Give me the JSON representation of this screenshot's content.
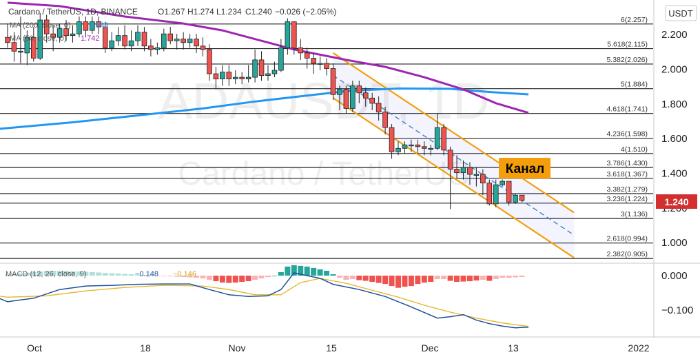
{
  "header": {
    "pair": "Cardano / TetherUS, 1D, BINANCE",
    "open": "O1.267",
    "high": "H1.274",
    "low": "L1.234",
    "close": "C1.240",
    "change": "−0.026 (−2.05%)",
    "ma200_label": "MA (200, close, 0)",
    "ma200_value": "1.849",
    "ma50_label": "MA (50, close, 0)",
    "ma50_value": "1.742"
  },
  "currency_button": "USDT",
  "last_price_label": "1.240",
  "watermark": {
    "ticker": "ADAUSDT, 1D",
    "name": "Cardano / TetherUS"
  },
  "channel_label": "Канал",
  "macd_header": {
    "label": "MACD (12, 26, close, 9)",
    "values": [
      "−0.148",
      "−0.146"
    ]
  },
  "colors": {
    "up": "#26a69a",
    "down": "#ef5350",
    "ma50": "#9c27b0",
    "ma200": "#2196f3",
    "channel": "#f59e0b",
    "macd_line": "#1e4f9c",
    "signal_line": "#e6b422",
    "last_price_bg": "#d32f2f"
  },
  "chart_data": {
    "type": "candlestick",
    "symbol": "ADAUSDT",
    "timeframe": "1D",
    "price_axis_ticks": [
      "2.200",
      "2.000",
      "1.800",
      "1.600",
      "1.400",
      "1.200",
      "1.000"
    ],
    "time_axis_ticks": [
      "Oct",
      "18",
      "Nov",
      "15",
      "Dec",
      "13",
      "2022"
    ],
    "price_range": [
      0.86,
      2.34
    ],
    "fib_levels": [
      {
        "label": "6(2.257)",
        "value": 2.257
      },
      {
        "label": "5.618(2.115)",
        "value": 2.115
      },
      {
        "label": "5.382(2.026)",
        "value": 2.026
      },
      {
        "label": "5(1.884)",
        "value": 1.884
      },
      {
        "label": "4.618(1.741)",
        "value": 1.741
      },
      {
        "label": "4.236(1.598)",
        "value": 1.598
      },
      {
        "label": "4(1.510)",
        "value": 1.51
      },
      {
        "label": "3.786(1.430)",
        "value": 1.43
      },
      {
        "label": "3.618(1.367)",
        "value": 1.367
      },
      {
        "label": "3.382(1.279)",
        "value": 1.279
      },
      {
        "label": "3.236(1.224)",
        "value": 1.224
      },
      {
        "label": "3(1.136)",
        "value": 1.136
      },
      {
        "label": "2.618(0.994)",
        "value": 0.994
      },
      {
        "label": "2.382(0.905)",
        "value": 0.905
      }
    ],
    "candles": [
      [
        2.18,
        2.15,
        2.26,
        2.12
      ],
      [
        2.15,
        2.1,
        2.21,
        2.04
      ],
      [
        2.1,
        2.1,
        2.3,
        2.03
      ],
      [
        2.09,
        2.18,
        2.22,
        2.02
      ],
      [
        2.18,
        2.06,
        2.24,
        2.04
      ],
      [
        2.06,
        2.28,
        2.32,
        2.05
      ],
      [
        2.28,
        2.2,
        2.31,
        2.15
      ],
      [
        2.2,
        2.18,
        2.25,
        2.1
      ],
      [
        2.18,
        2.23,
        2.26,
        2.15
      ],
      [
        2.23,
        2.19,
        2.28,
        2.16
      ],
      [
        2.19,
        2.2,
        2.25,
        2.15
      ],
      [
        2.2,
        2.27,
        2.3,
        2.18
      ],
      [
        2.27,
        2.22,
        2.3,
        2.18
      ],
      [
        2.22,
        2.27,
        2.3,
        2.2
      ],
      [
        2.27,
        2.24,
        2.3,
        2.2
      ],
      [
        2.24,
        2.12,
        2.27,
        2.09
      ],
      [
        2.12,
        2.16,
        2.21,
        2.1
      ],
      [
        2.16,
        2.19,
        2.24,
        2.13
      ],
      [
        2.19,
        2.13,
        2.25,
        2.11
      ],
      [
        2.13,
        2.16,
        2.22,
        2.1
      ],
      [
        2.16,
        2.21,
        2.25,
        2.13
      ],
      [
        2.21,
        2.13,
        2.24,
        2.1
      ],
      [
        2.13,
        2.11,
        2.17,
        2.07
      ],
      [
        2.11,
        2.12,
        2.15,
        2.08
      ],
      [
        2.12,
        2.2,
        2.23,
        2.1
      ],
      [
        2.2,
        2.16,
        2.24,
        2.14
      ],
      [
        2.16,
        2.17,
        2.2,
        2.11
      ],
      [
        2.17,
        2.15,
        2.21,
        2.11
      ],
      [
        2.15,
        2.17,
        2.2,
        2.12
      ],
      [
        2.17,
        2.13,
        2.2,
        2.09
      ],
      [
        2.13,
        2.11,
        2.18,
        2.07
      ],
      [
        2.11,
        1.97,
        2.14,
        1.93
      ],
      [
        1.97,
        1.94,
        2.01,
        1.88
      ],
      [
        1.94,
        1.98,
        2.02,
        1.9
      ],
      [
        1.98,
        1.94,
        2.02,
        1.9
      ],
      [
        1.94,
        1.95,
        1.99,
        1.91
      ],
      [
        1.95,
        1.94,
        1.98,
        1.91
      ],
      [
        1.94,
        1.95,
        2.02,
        1.92
      ],
      [
        1.95,
        2.05,
        2.11,
        1.92
      ],
      [
        2.05,
        1.96,
        2.1,
        1.93
      ],
      [
        1.96,
        1.97,
        2.02,
        1.93
      ],
      [
        1.97,
        1.99,
        2.04,
        1.95
      ],
      [
        1.99,
        2.12,
        2.17,
        1.98
      ],
      [
        2.12,
        2.27,
        2.29,
        2.08
      ],
      [
        2.27,
        2.12,
        2.26,
        2.08
      ],
      [
        2.12,
        2.09,
        2.17,
        2.05
      ],
      [
        2.09,
        2.06,
        2.12,
        2.0
      ],
      [
        2.06,
        2.03,
        2.09,
        1.97
      ],
      [
        2.03,
        2.03,
        2.07,
        1.99
      ],
      [
        2.03,
        2.0,
        2.06,
        1.96
      ],
      [
        2.0,
        1.85,
        2.03,
        1.82
      ],
      [
        1.85,
        1.88,
        1.9,
        1.76
      ],
      [
        1.88,
        1.77,
        1.9,
        1.74
      ],
      [
        1.77,
        1.9,
        1.93,
        1.75
      ],
      [
        1.9,
        1.86,
        1.93,
        1.8
      ],
      [
        1.86,
        1.83,
        1.89,
        1.78
      ],
      [
        1.83,
        1.8,
        1.86,
        1.76
      ],
      [
        1.8,
        1.75,
        1.84,
        1.7
      ],
      [
        1.75,
        1.66,
        1.78,
        1.62
      ],
      [
        1.66,
        1.52,
        1.68,
        1.48
      ],
      [
        1.52,
        1.54,
        1.58,
        1.5
      ],
      [
        1.54,
        1.56,
        1.58,
        1.51
      ],
      [
        1.56,
        1.56,
        1.59,
        1.52
      ],
      [
        1.56,
        1.55,
        1.59,
        1.51
      ],
      [
        1.55,
        1.54,
        1.58,
        1.5
      ],
      [
        1.54,
        1.54,
        1.56,
        1.5
      ],
      [
        1.54,
        1.66,
        1.74,
        1.53
      ],
      [
        1.66,
        1.53,
        1.68,
        1.5
      ],
      [
        1.53,
        1.42,
        1.55,
        1.19
      ],
      [
        1.42,
        1.4,
        1.5,
        1.37
      ],
      [
        1.4,
        1.43,
        1.47,
        1.36
      ],
      [
        1.43,
        1.39,
        1.46,
        1.33
      ],
      [
        1.39,
        1.39,
        1.43,
        1.32
      ],
      [
        1.39,
        1.34,
        1.42,
        1.27
      ],
      [
        1.34,
        1.22,
        1.36,
        1.21
      ],
      [
        1.22,
        1.33,
        1.36,
        1.2
      ],
      [
        1.33,
        1.35,
        1.36,
        1.32
      ],
      [
        1.35,
        1.23,
        1.35,
        1.21
      ],
      [
        1.23,
        1.27,
        1.28,
        1.22
      ],
      [
        1.27,
        1.24,
        1.27,
        1.23
      ]
    ],
    "ma50": [
      [
        0,
        2.38
      ],
      [
        8,
        2.36
      ],
      [
        18,
        2.3
      ],
      [
        27,
        2.26
      ],
      [
        33,
        2.22
      ],
      [
        38,
        2.17
      ],
      [
        44,
        2.11
      ],
      [
        52,
        2.05
      ],
      [
        58,
        2.01
      ],
      [
        64,
        1.95
      ],
      [
        70,
        1.88
      ],
      [
        75,
        1.8
      ],
      [
        80,
        1.745
      ]
    ],
    "ma200": [
      [
        -5,
        1.64
      ],
      [
        10,
        1.69
      ],
      [
        20,
        1.73
      ],
      [
        30,
        1.77
      ],
      [
        38,
        1.81
      ],
      [
        45,
        1.84
      ],
      [
        52,
        1.87
      ],
      [
        60,
        1.885
      ],
      [
        68,
        1.883
      ],
      [
        74,
        1.865
      ],
      [
        80,
        1.851
      ]
    ],
    "channel": {
      "upper": [
        [
          50,
          2.09
        ],
        [
          87,
          1.17
        ]
      ],
      "lower": [
        [
          50,
          1.83
        ],
        [
          87,
          0.91
        ]
      ],
      "mid": [
        [
          50,
          1.96
        ],
        [
          87,
          1.04
        ]
      ]
    },
    "macd": {
      "axis_ticks": [
        "0.000",
        "−0.100"
      ],
      "hist": [
        0.002,
        0.004,
        0.006,
        0.008,
        0.01,
        0.012,
        0.013,
        0.014,
        0.014,
        0.014,
        0.013,
        0.012,
        0.011,
        0.01,
        0.009,
        0.008,
        0.007,
        0.006,
        0.005,
        0.004,
        0.003,
        0.002,
        0.001,
        0.0,
        -0.001,
        -0.002,
        -0.003,
        -0.004,
        -0.005,
        -0.006,
        -0.008,
        -0.012,
        -0.016,
        -0.02,
        -0.021,
        -0.02,
        -0.018,
        -0.016,
        -0.012,
        -0.008,
        -0.004,
        0.0,
        0.01,
        0.026,
        0.03,
        0.028,
        0.026,
        0.022,
        0.018,
        0.014,
        0.004,
        -0.006,
        -0.012,
        -0.01,
        -0.013,
        -0.015,
        -0.018,
        -0.021,
        -0.024,
        -0.03,
        -0.035,
        -0.032,
        -0.03,
        -0.024,
        -0.02,
        -0.018,
        -0.01,
        -0.01,
        -0.015,
        -0.018,
        -0.017,
        -0.016,
        -0.014,
        -0.012,
        -0.015,
        -0.01,
        -0.006,
        -0.006,
        -0.005,
        -0.004
      ],
      "macd_line": [
        [
          -5,
          -0.04
        ],
        [
          -2,
          -0.06
        ],
        [
          0,
          -0.075
        ],
        [
          4,
          -0.065
        ],
        [
          8,
          -0.04
        ],
        [
          12,
          -0.03
        ],
        [
          16,
          -0.028
        ],
        [
          20,
          -0.025
        ],
        [
          24,
          -0.024
        ],
        [
          28,
          -0.024
        ],
        [
          31,
          -0.04
        ],
        [
          34,
          -0.055
        ],
        [
          37,
          -0.06
        ],
        [
          40,
          -0.058
        ],
        [
          42,
          -0.04
        ],
        [
          44,
          0.008
        ],
        [
          46,
          0.0
        ],
        [
          48,
          -0.008
        ],
        [
          50,
          -0.025
        ],
        [
          54,
          -0.04
        ],
        [
          58,
          -0.06
        ],
        [
          62,
          -0.09
        ],
        [
          66,
          -0.122
        ],
        [
          68,
          -0.118
        ],
        [
          70,
          -0.112
        ],
        [
          72,
          -0.128
        ],
        [
          74,
          -0.138
        ],
        [
          76,
          -0.145
        ],
        [
          78,
          -0.15
        ],
        [
          80,
          -0.148
        ]
      ],
      "signal_line": [
        [
          -5,
          -0.05
        ],
        [
          0,
          -0.062
        ],
        [
          6,
          -0.058
        ],
        [
          12,
          -0.044
        ],
        [
          18,
          -0.034
        ],
        [
          24,
          -0.028
        ],
        [
          30,
          -0.03
        ],
        [
          34,
          -0.04
        ],
        [
          38,
          -0.055
        ],
        [
          42,
          -0.055
        ],
        [
          45,
          -0.02
        ],
        [
          48,
          -0.008
        ],
        [
          52,
          -0.022
        ],
        [
          56,
          -0.042
        ],
        [
          60,
          -0.062
        ],
        [
          64,
          -0.085
        ],
        [
          68,
          -0.105
        ],
        [
          72,
          -0.122
        ],
        [
          76,
          -0.136
        ],
        [
          80,
          -0.146
        ]
      ]
    }
  }
}
